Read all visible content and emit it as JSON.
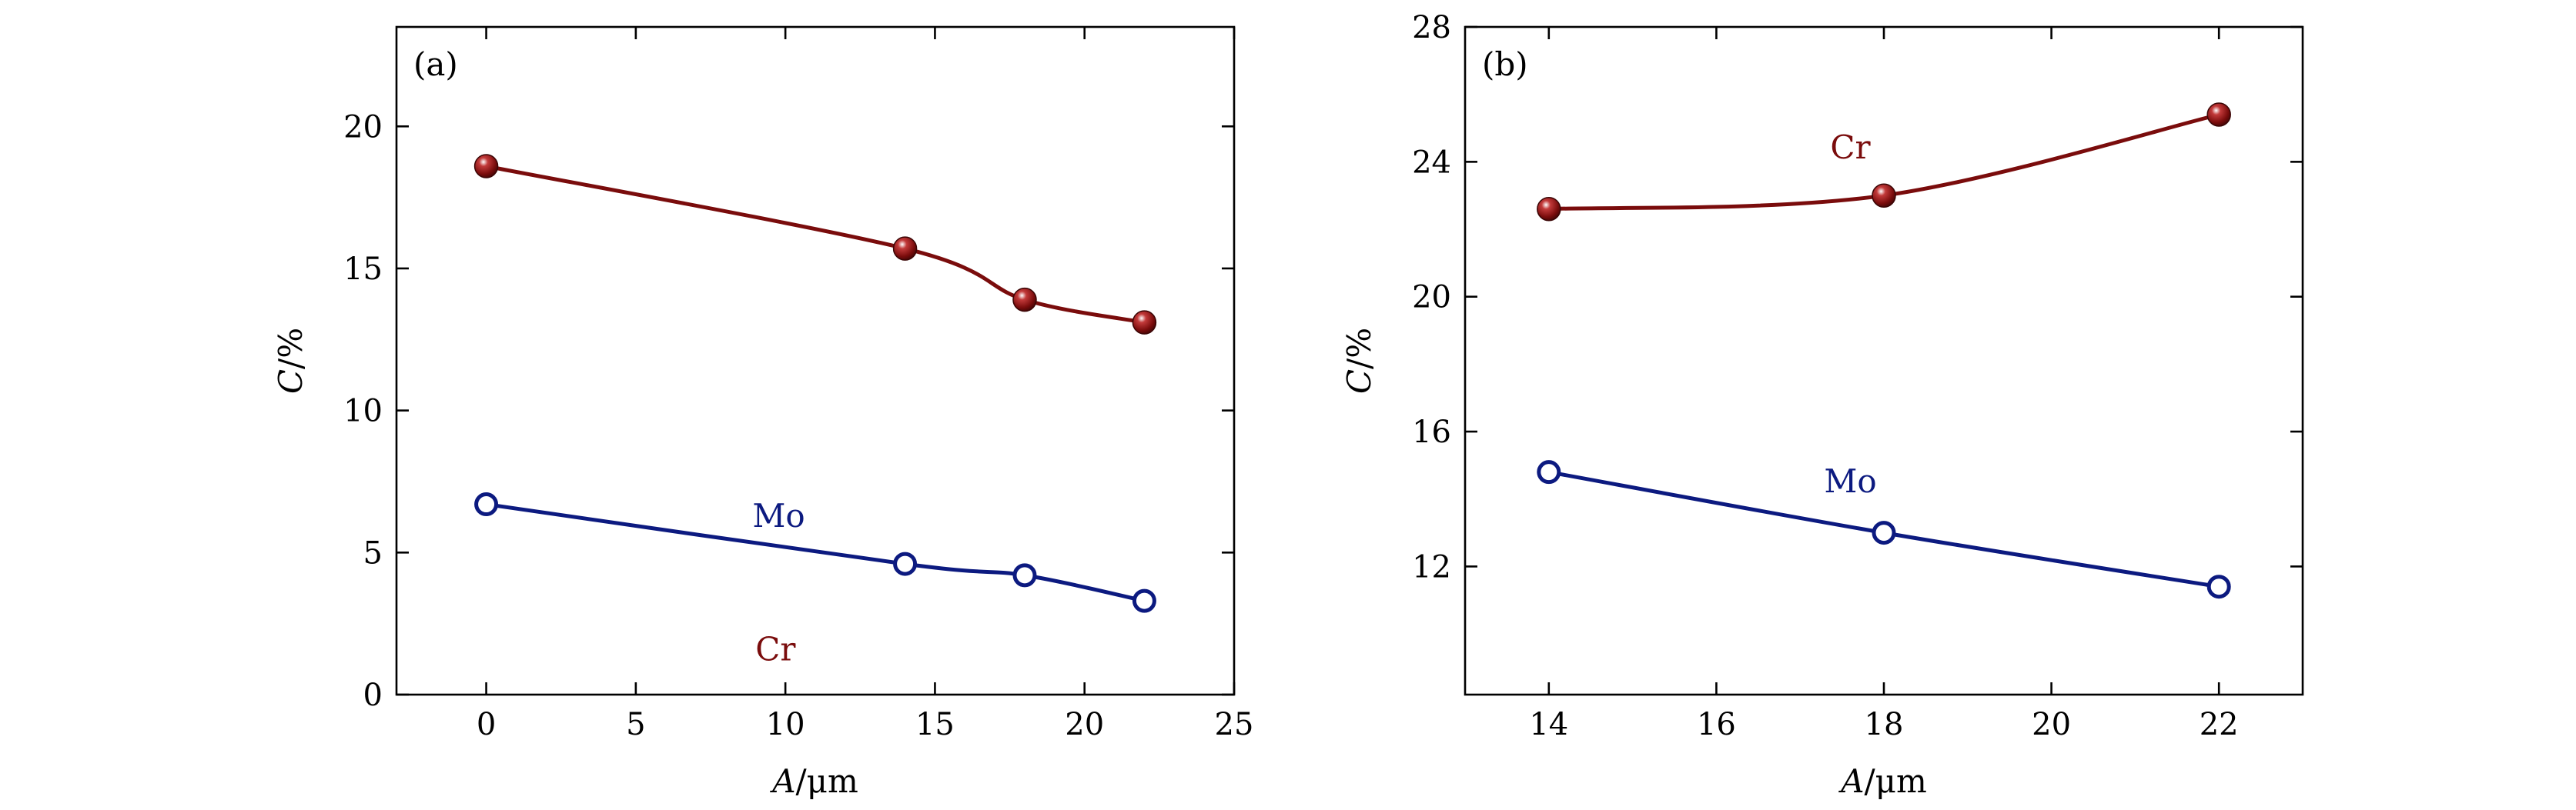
{
  "colors": {
    "cr": "#7a0c0c",
    "mo": "#0c1a80"
  },
  "chart_data": [
    {
      "type": "line",
      "panel_label": "(a)",
      "xlabel_var": "A",
      "xlabel_unit": "/μm",
      "ylabel_var": "C",
      "ylabel_unit": "/%",
      "xlim": [
        -3,
        25
      ],
      "ylim": [
        0,
        23.5
      ],
      "xticks": [
        0,
        5,
        10,
        15,
        20,
        25
      ],
      "yticks": [
        0,
        5,
        10,
        15,
        20
      ],
      "series": [
        {
          "name": "Cr",
          "marker": "filled",
          "x": [
            0,
            14,
            18,
            22
          ],
          "y": [
            18.6,
            15.7,
            13.9,
            13.1
          ]
        },
        {
          "name": "Mo",
          "marker": "open",
          "x": [
            0,
            14,
            18,
            22
          ],
          "y": [
            6.7,
            4.6,
            4.2,
            3.3
          ]
        }
      ]
    },
    {
      "type": "line",
      "panel_label": "(b)",
      "xlabel_var": "A",
      "xlabel_unit": "/μm",
      "ylabel_var": "C",
      "ylabel_unit": "/%",
      "xlim": [
        13,
        23
      ],
      "ylim": [
        8.2,
        28
      ],
      "xticks": [
        14,
        16,
        18,
        20,
        22
      ],
      "yticks": [
        12,
        16,
        20,
        24,
        28
      ],
      "series": [
        {
          "name": "Cr",
          "marker": "filled",
          "x": [
            14,
            18,
            22
          ],
          "y": [
            22.6,
            23.0,
            25.4
          ]
        },
        {
          "name": "Mo",
          "marker": "open",
          "x": [
            14,
            18,
            22
          ],
          "y": [
            14.8,
            13.0,
            11.4
          ]
        }
      ]
    }
  ]
}
